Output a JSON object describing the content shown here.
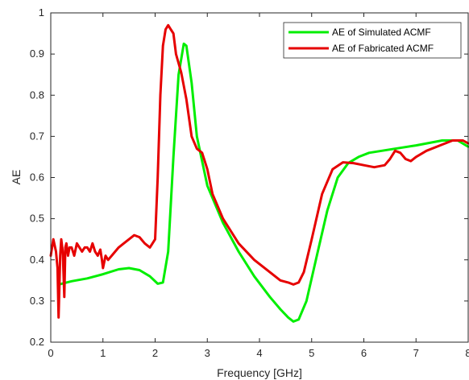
{
  "chart_data": {
    "type": "line",
    "title": "",
    "xlabel": "Frequency [GHz]",
    "ylabel": "AE",
    "xlim": [
      0,
      8
    ],
    "ylim": [
      0.2,
      1.0
    ],
    "xticks": [
      0,
      1,
      2,
      3,
      4,
      5,
      6,
      7,
      8
    ],
    "yticks": [
      0.2,
      0.3,
      0.4,
      0.5,
      0.6,
      0.7,
      0.8,
      0.9,
      1.0
    ],
    "xtick_labels": [
      "0",
      "1",
      "2",
      "3",
      "4",
      "5",
      "6",
      "7",
      "8"
    ],
    "ytick_labels": [
      "0.2",
      "0.3",
      "0.4",
      "0.5",
      "0.6",
      "0.7",
      "0.8",
      "0.9",
      "1"
    ],
    "grid": false,
    "legend": "top-right",
    "series": [
      {
        "name": "AE of Simulated ACMF",
        "color": "#00ee00",
        "x": [
          0.15,
          0.4,
          0.7,
          1.0,
          1.3,
          1.5,
          1.7,
          1.9,
          2.05,
          2.15,
          2.25,
          2.35,
          2.45,
          2.55,
          2.6,
          2.7,
          2.8,
          3.0,
          3.3,
          3.6,
          3.9,
          4.2,
          4.4,
          4.55,
          4.65,
          4.75,
          4.9,
          5.1,
          5.3,
          5.5,
          5.7,
          5.9,
          6.1,
          6.5,
          7.0,
          7.5,
          7.8,
          8.0
        ],
        "y": [
          0.34,
          0.348,
          0.355,
          0.365,
          0.377,
          0.38,
          0.375,
          0.36,
          0.342,
          0.345,
          0.42,
          0.65,
          0.85,
          0.925,
          0.92,
          0.83,
          0.7,
          0.58,
          0.49,
          0.42,
          0.36,
          0.31,
          0.28,
          0.26,
          0.25,
          0.255,
          0.3,
          0.41,
          0.52,
          0.6,
          0.635,
          0.65,
          0.66,
          0.668,
          0.678,
          0.69,
          0.69,
          0.675
        ]
      },
      {
        "name": "AE of Fabricated ACMF",
        "color": "#e60000",
        "x": [
          0.0,
          0.05,
          0.1,
          0.13,
          0.15,
          0.18,
          0.2,
          0.23,
          0.26,
          0.28,
          0.3,
          0.33,
          0.36,
          0.4,
          0.45,
          0.5,
          0.55,
          0.6,
          0.65,
          0.7,
          0.75,
          0.8,
          0.85,
          0.9,
          0.95,
          0.98,
          1.0,
          1.05,
          1.1,
          1.2,
          1.3,
          1.4,
          1.5,
          1.6,
          1.7,
          1.8,
          1.9,
          2.0,
          2.05,
          2.1,
          2.15,
          2.2,
          2.25,
          2.3,
          2.35,
          2.4,
          2.5,
          2.6,
          2.7,
          2.8,
          2.9,
          3.0,
          3.1,
          3.3,
          3.6,
          3.9,
          4.2,
          4.4,
          4.55,
          4.65,
          4.75,
          4.85,
          5.0,
          5.2,
          5.4,
          5.6,
          5.8,
          6.0,
          6.2,
          6.4,
          6.5,
          6.6,
          6.7,
          6.8,
          6.9,
          7.0,
          7.2,
          7.5,
          7.7,
          7.9,
          8.0
        ],
        "y": [
          0.41,
          0.45,
          0.42,
          0.38,
          0.26,
          0.41,
          0.45,
          0.42,
          0.31,
          0.43,
          0.44,
          0.41,
          0.43,
          0.43,
          0.41,
          0.44,
          0.43,
          0.42,
          0.43,
          0.43,
          0.42,
          0.44,
          0.42,
          0.41,
          0.425,
          0.4,
          0.38,
          0.41,
          0.4,
          0.415,
          0.43,
          0.44,
          0.45,
          0.46,
          0.455,
          0.44,
          0.43,
          0.45,
          0.6,
          0.8,
          0.92,
          0.96,
          0.97,
          0.96,
          0.95,
          0.9,
          0.855,
          0.79,
          0.7,
          0.67,
          0.66,
          0.62,
          0.56,
          0.5,
          0.44,
          0.4,
          0.37,
          0.35,
          0.345,
          0.34,
          0.345,
          0.37,
          0.45,
          0.56,
          0.62,
          0.637,
          0.635,
          0.63,
          0.625,
          0.63,
          0.645,
          0.665,
          0.66,
          0.645,
          0.64,
          0.65,
          0.665,
          0.68,
          0.69,
          0.69,
          0.683
        ]
      }
    ]
  }
}
